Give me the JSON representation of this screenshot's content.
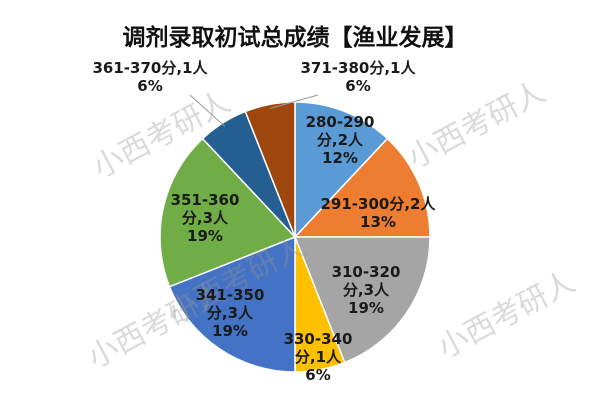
{
  "chart_data": {
    "type": "pie",
    "title": "调剂录取初试总成绩【渔业发展】",
    "categories": [
      "280-290分,2人",
      "291-300分,2人",
      "310-320分,3人",
      "330-340分,1人",
      "341-350分,3人",
      "351-360分,3人",
      "361-370分,1人",
      "371-380分,1人"
    ],
    "values": [
      12,
      13,
      19,
      6,
      19,
      19,
      6,
      6
    ],
    "value_labels": [
      "12%",
      "13%",
      "19%",
      "6%",
      "19%",
      "19%",
      "6%",
      "6%"
    ],
    "colors": [
      "#5b9bd5",
      "#ed7d31",
      "#a5a5a5",
      "#ffc000",
      "#4472c4",
      "#70ad47",
      "#255e91",
      "#9e480e"
    ],
    "watermark": "小西考研人"
  }
}
